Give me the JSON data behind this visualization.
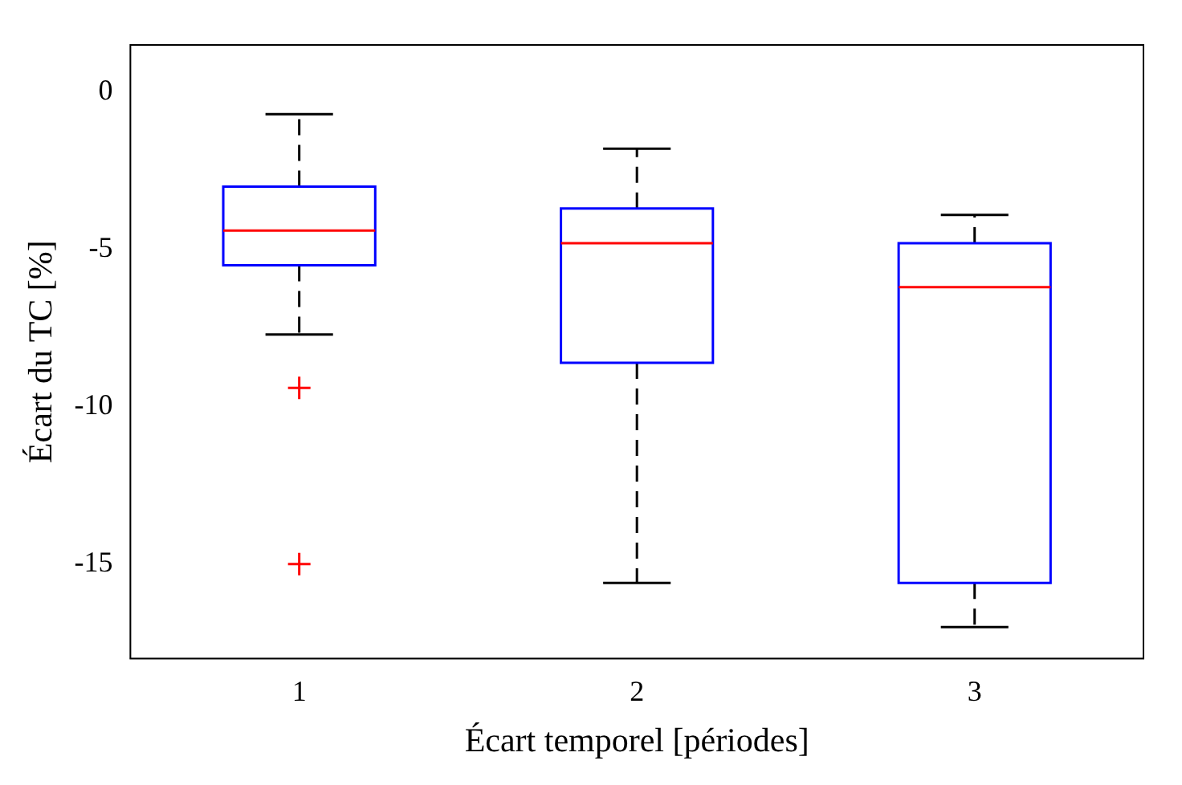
{
  "chart_data": {
    "type": "box",
    "xlabel": "Écart temporel [périodes]",
    "ylabel": "Écart du TC [%]",
    "categories": [
      "1",
      "2",
      "3"
    ],
    "ylim": [
      -18,
      1.5
    ],
    "yticks": [
      -15,
      -10,
      -5,
      0
    ],
    "grid": false,
    "legend": false,
    "series": [
      {
        "color": "#0000ff",
        "boxes": [
          {
            "low": -7.7,
            "q1": -5.5,
            "median": -4.4,
            "q3": -3.0,
            "high": -0.7,
            "outliers": [
              -9.4,
              -15
            ]
          },
          {
            "low": -15.6,
            "q1": -8.6,
            "median": -4.8,
            "q3": -3.7,
            "high": -1.8
          },
          {
            "low": -17,
            "q1": -15.6,
            "median": -6.2,
            "q3": -4.8,
            "high": -3.9
          }
        ]
      }
    ]
  }
}
